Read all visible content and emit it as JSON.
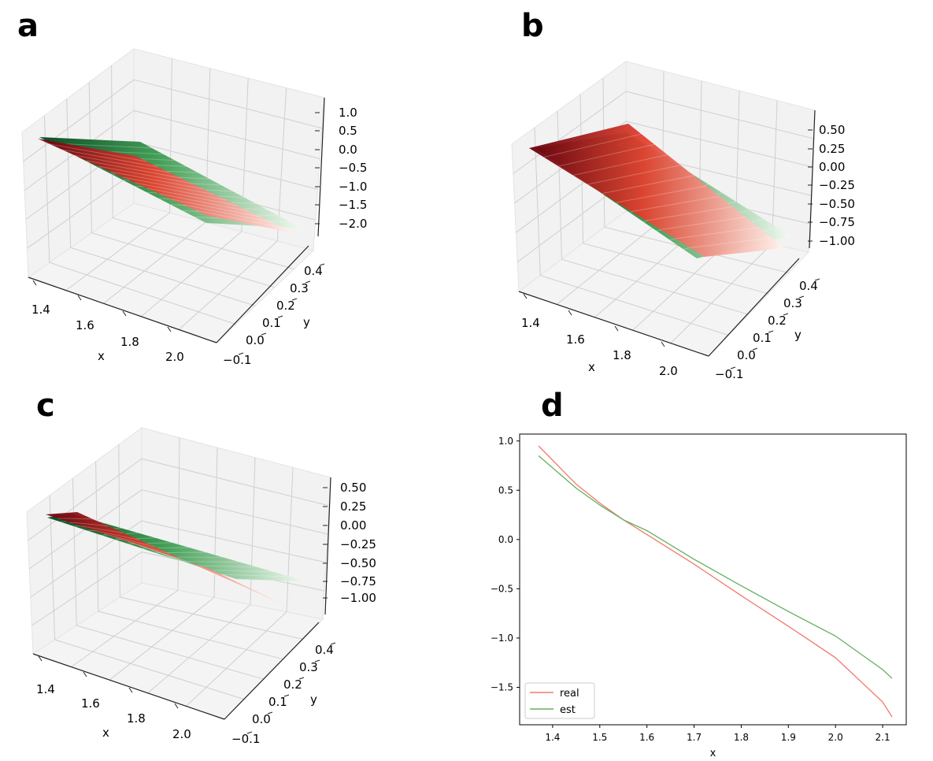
{
  "panels": {
    "a": {
      "label": "a"
    },
    "b": {
      "label": "b"
    },
    "c": {
      "label": "c"
    },
    "d": {
      "label": "d"
    }
  },
  "colors": {
    "real": "#f07a6c",
    "est": "#63b15c",
    "reds_dark": "#67000d",
    "reds_mid": "#e3412f",
    "reds_light": "#fff5f0",
    "greens_dark": "#00441b",
    "greens_mid": "#3a9a4e",
    "greens_light": "#f3fbf2",
    "pane": "#f2f2f2",
    "grid": "#cfcfcf"
  },
  "chart_data": [
    {
      "id": "a",
      "type": "surface3d",
      "xlabel": "x",
      "ylabel": "y",
      "zlabel": "",
      "x_ticks": [
        "1.4",
        "1.6",
        "1.8",
        "2.0"
      ],
      "y_ticks": [
        "−0.1",
        "0.0",
        "0.1",
        "0.2",
        "0.3",
        "0.4"
      ],
      "z_ticks": [
        "1.0",
        "0.5",
        "0.0",
        "−0.5",
        "−1.0",
        "−1.5",
        "−2.0"
      ],
      "xlim": [
        1.37,
        2.12
      ],
      "ylim": [
        -0.1,
        0.45
      ],
      "zlim": [
        -2.2,
        1.2
      ],
      "series": [
        {
          "name": "real",
          "colormap": "Reds",
          "z_at_x_min": 0.95,
          "z_at_x_max": -1.8
        },
        {
          "name": "est",
          "colormap": "Greens",
          "z_at_x_min": 0.85,
          "z_at_x_max": -1.4
        }
      ]
    },
    {
      "id": "b",
      "type": "surface3d",
      "xlabel": "x",
      "ylabel": "y",
      "zlabel": "",
      "x_ticks": [
        "1.4",
        "1.6",
        "1.8",
        "2.0"
      ],
      "y_ticks": [
        "−0.1",
        "0.0",
        "0.1",
        "0.2",
        "0.3",
        "0.4"
      ],
      "z_ticks": [
        "0.50",
        "0.25",
        "0.00",
        "−0.25",
        "−0.50",
        "−0.75",
        "−1.00"
      ],
      "xlim": [
        1.37,
        2.12
      ],
      "ylim": [
        -0.1,
        0.45
      ],
      "zlim": [
        -1.1,
        0.65
      ],
      "series": [
        {
          "name": "real",
          "colormap": "Reds",
          "z_at_x_min": 0.55,
          "z_at_x_max": -1.0
        },
        {
          "name": "est",
          "colormap": "Greens",
          "z_at_x_min": 0.5,
          "z_at_x_max": -0.85
        }
      ]
    },
    {
      "id": "c",
      "type": "surface3d",
      "xlabel": "x",
      "ylabel": "y",
      "zlabel": "",
      "x_ticks": [
        "1.4",
        "1.6",
        "1.8",
        "2.0"
      ],
      "y_ticks": [
        "−0.1",
        "0.0",
        "0.1",
        "0.2",
        "0.3",
        "0.4"
      ],
      "z_ticks": [
        "0.50",
        "0.25",
        "0.00",
        "−0.25",
        "−0.50",
        "−0.75",
        "−1.00"
      ],
      "xlim": [
        1.37,
        2.12
      ],
      "ylim": [
        -0.1,
        0.45
      ],
      "zlim": [
        -1.1,
        0.65
      ],
      "series": [
        {
          "name": "real",
          "colormap": "Reds",
          "z_at_x_min": 0.3,
          "z_at_x_max": -1.0
        },
        {
          "name": "est",
          "colormap": "Greens",
          "z_at_x_min": 0.25,
          "z_at_x_max": -0.75
        }
      ]
    },
    {
      "id": "d",
      "type": "line",
      "title": "",
      "xlabel": "x",
      "ylabel": "",
      "xlim": [
        1.33,
        2.15
      ],
      "ylim": [
        -1.88,
        1.07
      ],
      "x_ticks": [
        1.4,
        1.5,
        1.6,
        1.7,
        1.8,
        1.9,
        2.0,
        2.1
      ],
      "x_tick_labels": [
        "1.4",
        "1.5",
        "1.6",
        "1.7",
        "1.8",
        "1.9",
        "2.0",
        "2.1"
      ],
      "y_ticks": [
        1.0,
        0.5,
        0.0,
        -0.5,
        -1.0,
        -1.5
      ],
      "y_tick_labels": [
        "1.0",
        "0.5",
        "0.0",
        "−0.5",
        "−1.0",
        "−1.5"
      ],
      "legend": {
        "position": "lower-left",
        "entries": [
          "real",
          "est"
        ]
      },
      "series": [
        {
          "name": "real",
          "x": [
            1.37,
            1.45,
            1.5,
            1.55,
            1.6,
            1.7,
            1.8,
            1.9,
            2.0,
            2.1,
            2.12
          ],
          "y": [
            0.95,
            0.56,
            0.37,
            0.2,
            0.05,
            -0.25,
            -0.57,
            -0.88,
            -1.2,
            -1.65,
            -1.8
          ]
        },
        {
          "name": "est",
          "x": [
            1.37,
            1.45,
            1.5,
            1.55,
            1.6,
            1.7,
            1.8,
            1.9,
            2.0,
            2.1,
            2.12
          ],
          "y": [
            0.85,
            0.52,
            0.35,
            0.2,
            0.09,
            -0.2,
            -0.47,
            -0.73,
            -0.98,
            -1.32,
            -1.41
          ]
        }
      ]
    }
  ]
}
